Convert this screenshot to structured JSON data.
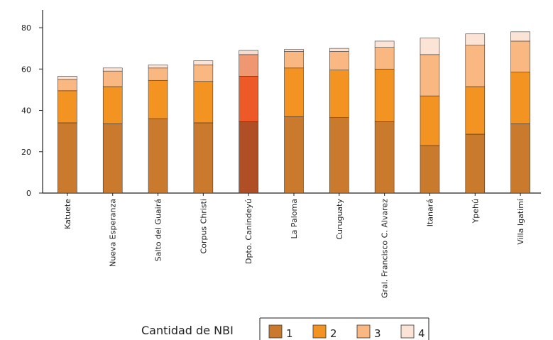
{
  "chart_data": {
    "type": "bar",
    "stacked": true,
    "categories": [
      "Katuete",
      "Nueva Esperanza",
      "Salto del Guairá",
      "Corpus Christi",
      "Dpto. Canindeyú",
      "La Paloma",
      "Curuguaty",
      "Gral. Francisco C. Alvarez",
      "Itanará",
      "Ypehú",
      "Villa Igatimí"
    ],
    "highlight_category": "Dpto. Canindeyú",
    "series": [
      {
        "name": "1",
        "values": [
          34,
          33.5,
          36,
          34,
          34.5,
          37,
          36.5,
          34.5,
          23,
          28.5,
          33.5
        ]
      },
      {
        "name": "2",
        "values": [
          15.5,
          18,
          18.5,
          20,
          22,
          23.5,
          23,
          25.5,
          24,
          23,
          25
        ]
      },
      {
        "name": "3",
        "values": [
          5.5,
          7.5,
          6,
          8,
          10.5,
          8,
          9,
          10.5,
          20,
          20,
          15
        ]
      },
      {
        "name": "4",
        "values": [
          1.5,
          1.5,
          1.5,
          2,
          2,
          1,
          1.5,
          3,
          8,
          5.5,
          4.5
        ]
      }
    ],
    "colors": [
      "#c97a2c",
      "#f39322",
      "#f9b882",
      "#fbe3d6"
    ],
    "highlight_colors": [
      "#b04e26",
      "#ee5a27",
      "#ef9770",
      "#f7dccd"
    ],
    "ylim": [
      0,
      90
    ],
    "yticks": [
      0,
      20,
      40,
      60,
      80
    ],
    "title": "",
    "xlabel": "",
    "ylabel": "",
    "grid": false,
    "legend": {
      "title": "Cantidad de NBI",
      "placement": "bottom-right",
      "entries": [
        "1",
        "2",
        "3",
        "4"
      ]
    }
  }
}
